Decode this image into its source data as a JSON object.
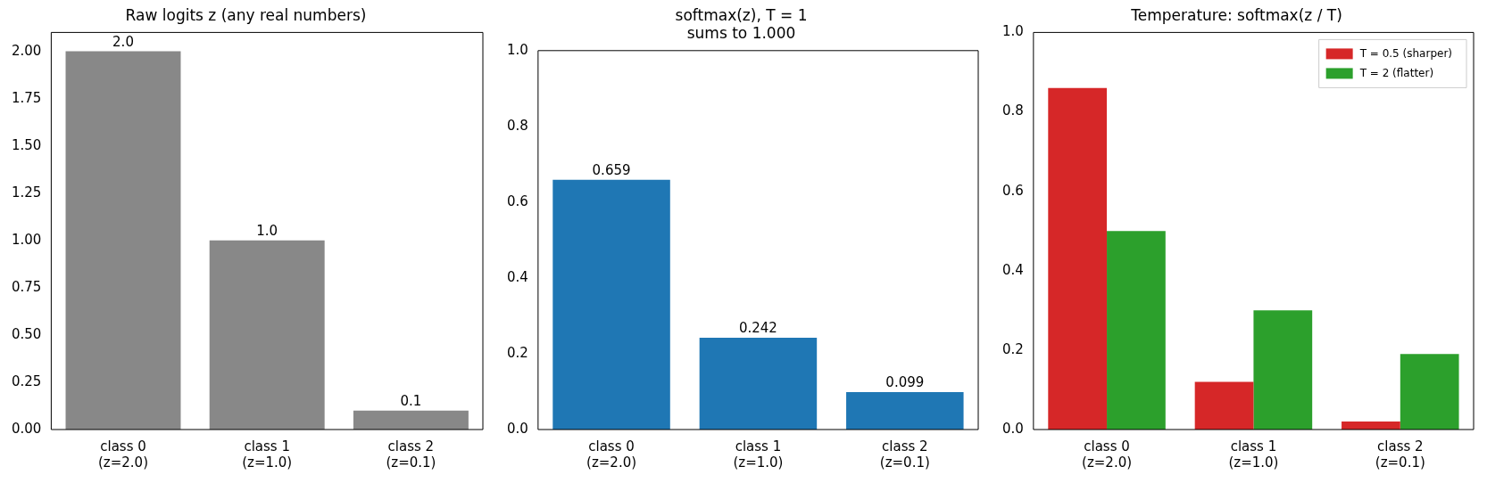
{
  "chart_data": [
    {
      "type": "bar",
      "title": "Raw logits z (any real numbers)",
      "categories": [
        "class 0\n(z=2.0)",
        "class 1\n(z=1.0)",
        "class 2\n(z=0.1)"
      ],
      "values": [
        2.0,
        1.0,
        0.1
      ],
      "value_labels": [
        "2.0",
        "1.0",
        "0.1"
      ],
      "color": "#888888",
      "ylim": [
        0,
        2.1
      ],
      "yticks": [
        {
          "value": 0,
          "label": "0.00"
        },
        0.25,
        {
          "value": 0.5,
          "label": "0.50"
        },
        0.75,
        {
          "value": 1,
          "label": "1.00"
        },
        1.25,
        {
          "value": 1.5,
          "label": "1.50"
        },
        1.75,
        {
          "value": 2,
          "label": "2.00"
        }
      ],
      "grid": false,
      "legend": false
    },
    {
      "type": "bar",
      "title": "softmax(z), T = 1\nsums to 1.000",
      "categories": [
        "class 0\n(z=2.0)",
        "class 1\n(z=1.0)",
        "class 2\n(z=0.1)"
      ],
      "values": [
        0.659,
        0.242,
        0.099
      ],
      "data_labels": true,
      "color": "#1f77b4",
      "ylim": [
        0,
        1
      ],
      "yticks": [
        {
          "value": 0,
          "label": "0.0"
        },
        0.2,
        0.4,
        0.6,
        0.8,
        {
          "value": 1,
          "label": "1.0"
        }
      ],
      "grid": false,
      "legend": false
    },
    {
      "type": "bar",
      "title": "Temperature: softmax(z / T)",
      "categories": [
        "class 0\n(z=2.0)",
        "class 1\n(z=1.0)",
        "class 2\n(z=0.1)"
      ],
      "series": [
        {
          "name": "T = 0.5 (sharper)",
          "color": "#d62728",
          "values": [
            0.86,
            0.12,
            0.02
          ]
        },
        {
          "name": "T = 2 (flatter)",
          "color": "#2ca02c",
          "values": [
            0.5,
            0.3,
            0.19
          ]
        }
      ],
      "ylim": [
        0,
        1
      ],
      "yticks": [
        {
          "value": 0,
          "label": "0.0"
        },
        0.2,
        0.4,
        0.6,
        0.8,
        {
          "value": 1,
          "label": "1.0"
        }
      ],
      "grid": false,
      "legend": "top right"
    }
  ]
}
